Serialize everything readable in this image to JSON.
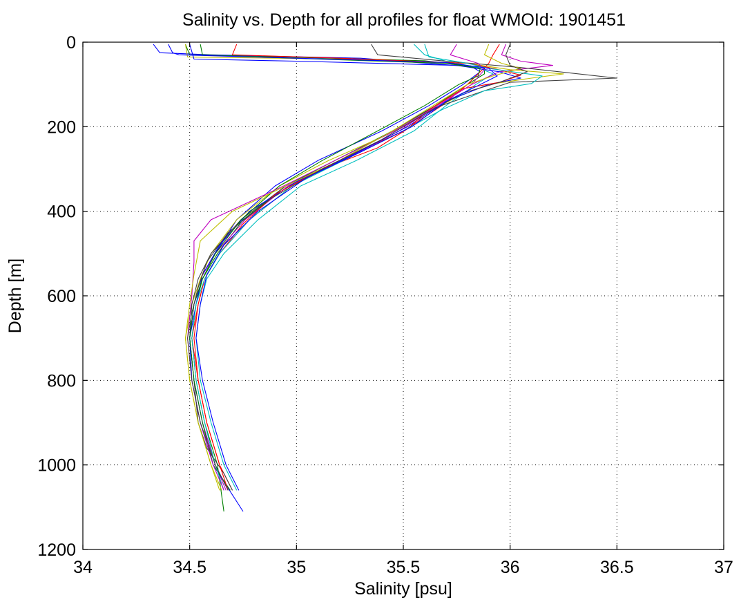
{
  "chart_data": {
    "type": "line",
    "title": "Salinity vs. Depth for all profiles for float WMOId: 1901451",
    "xlabel": "Salinity [psu]",
    "ylabel": "Depth [m]",
    "xlim": [
      34,
      37
    ],
    "ylim": [
      0,
      1200
    ],
    "y_inverted": true,
    "grid": true,
    "legend": "none",
    "x_ticks": [
      "34",
      "34.5",
      "35",
      "35.5",
      "36",
      "36.5",
      "37"
    ],
    "y_ticks": [
      "0",
      "200",
      "400",
      "600",
      "800",
      "1000",
      "1200"
    ],
    "colors": [
      "#0000ff",
      "#008000",
      "#ff0000",
      "#00bfbf",
      "#bf00bf",
      "#bfbf00",
      "#404040"
    ],
    "series": [
      {
        "points": [
          [
            34.33,
            5
          ],
          [
            34.36,
            25
          ],
          [
            34.6,
            30
          ],
          [
            35.3,
            38
          ],
          [
            35.82,
            58
          ],
          [
            35.86,
            70
          ],
          [
            35.78,
            100
          ],
          [
            35.62,
            150
          ],
          [
            35.4,
            210
          ],
          [
            35.1,
            280
          ],
          [
            34.9,
            340
          ],
          [
            34.72,
            420
          ],
          [
            34.62,
            500
          ],
          [
            34.56,
            560
          ],
          [
            34.52,
            620
          ],
          [
            34.5,
            700
          ],
          [
            34.52,
            800
          ],
          [
            34.56,
            900
          ],
          [
            34.62,
            1000
          ],
          [
            34.68,
            1060
          ]
        ]
      },
      {
        "points": [
          [
            34.48,
            5
          ],
          [
            34.5,
            30
          ],
          [
            35.0,
            36
          ],
          [
            35.6,
            44
          ],
          [
            35.88,
            60
          ],
          [
            35.88,
            75
          ],
          [
            35.8,
            100
          ],
          [
            35.65,
            150
          ],
          [
            35.45,
            210
          ],
          [
            35.18,
            280
          ],
          [
            34.95,
            340
          ],
          [
            34.75,
            420
          ],
          [
            34.63,
            500
          ],
          [
            34.56,
            560
          ],
          [
            34.53,
            620
          ],
          [
            34.51,
            700
          ],
          [
            34.53,
            800
          ],
          [
            34.57,
            900
          ],
          [
            34.63,
            1000
          ],
          [
            34.66,
            1110
          ]
        ]
      },
      {
        "points": [
          [
            35.95,
            5
          ],
          [
            35.92,
            30
          ],
          [
            35.9,
            50
          ],
          [
            35.88,
            60
          ],
          [
            35.8,
            100
          ],
          [
            35.68,
            150
          ],
          [
            35.5,
            210
          ],
          [
            35.2,
            280
          ],
          [
            34.98,
            340
          ],
          [
            34.78,
            420
          ],
          [
            34.64,
            500
          ],
          [
            34.57,
            560
          ],
          [
            34.54,
            620
          ],
          [
            34.51,
            700
          ],
          [
            34.54,
            800
          ],
          [
            34.58,
            900
          ],
          [
            34.64,
            1000
          ],
          [
            34.7,
            1060
          ]
        ]
      },
      {
        "points": [
          [
            35.55,
            5
          ],
          [
            35.6,
            30
          ],
          [
            35.7,
            45
          ],
          [
            35.85,
            60
          ],
          [
            35.92,
            75
          ],
          [
            35.84,
            100
          ],
          [
            35.7,
            150
          ],
          [
            35.55,
            210
          ],
          [
            35.28,
            280
          ],
          [
            35.02,
            340
          ],
          [
            34.82,
            420
          ],
          [
            34.66,
            500
          ],
          [
            34.58,
            560
          ],
          [
            34.55,
            620
          ],
          [
            34.53,
            700
          ],
          [
            34.55,
            800
          ],
          [
            34.6,
            900
          ],
          [
            34.66,
            1000
          ],
          [
            34.72,
            1060
          ]
        ]
      },
      {
        "points": [
          [
            35.98,
            5
          ],
          [
            35.96,
            30
          ],
          [
            36.05,
            45
          ],
          [
            36.2,
            55
          ],
          [
            35.95,
            70
          ],
          [
            35.82,
            100
          ],
          [
            35.66,
            150
          ],
          [
            35.48,
            210
          ],
          [
            35.22,
            280
          ],
          [
            34.96,
            340
          ],
          [
            34.76,
            420
          ],
          [
            34.62,
            500
          ],
          [
            34.55,
            560
          ],
          [
            34.52,
            620
          ],
          [
            34.5,
            700
          ],
          [
            34.52,
            800
          ],
          [
            34.56,
            900
          ],
          [
            34.62,
            1000
          ],
          [
            34.67,
            1060
          ]
        ]
      },
      {
        "points": [
          [
            34.48,
            5
          ],
          [
            34.49,
            35
          ],
          [
            35.2,
            40
          ],
          [
            35.8,
            50
          ],
          [
            36.0,
            65
          ],
          [
            36.25,
            75
          ],
          [
            36.1,
            85
          ],
          [
            35.9,
            100
          ],
          [
            35.75,
            130
          ],
          [
            35.6,
            170
          ],
          [
            35.42,
            220
          ],
          [
            35.15,
            280
          ],
          [
            34.92,
            340
          ],
          [
            34.72,
            420
          ],
          [
            34.6,
            500
          ],
          [
            34.55,
            560
          ],
          [
            34.51,
            620
          ],
          [
            34.48,
            700
          ],
          [
            34.5,
            800
          ],
          [
            34.54,
            900
          ],
          [
            34.6,
            1000
          ],
          [
            34.65,
            1060
          ]
        ]
      },
      {
        "points": [
          [
            35.35,
            5
          ],
          [
            35.38,
            30
          ],
          [
            35.7,
            45
          ],
          [
            36.05,
            60
          ],
          [
            36.5,
            85
          ],
          [
            36.0,
            95
          ],
          [
            35.85,
            120
          ],
          [
            35.62,
            160
          ],
          [
            35.45,
            210
          ],
          [
            35.2,
            280
          ],
          [
            34.95,
            340
          ],
          [
            34.74,
            420
          ],
          [
            34.6,
            500
          ],
          [
            34.54,
            560
          ],
          [
            34.51,
            620
          ],
          [
            34.5,
            700
          ],
          [
            34.52,
            800
          ],
          [
            34.54,
            900
          ],
          [
            34.58,
            960
          ],
          [
            34.66,
            1020
          ],
          [
            34.7,
            1060
          ]
        ]
      },
      {
        "points": [
          [
            34.5,
            5
          ],
          [
            34.52,
            40
          ],
          [
            35.0,
            45
          ],
          [
            35.75,
            55
          ],
          [
            35.95,
            70
          ],
          [
            36.05,
            85
          ],
          [
            35.9,
            100
          ],
          [
            35.7,
            140
          ],
          [
            35.52,
            200
          ],
          [
            35.25,
            270
          ],
          [
            35.0,
            330
          ],
          [
            34.78,
            400
          ],
          [
            34.64,
            480
          ],
          [
            34.56,
            550
          ],
          [
            34.53,
            620
          ],
          [
            34.5,
            700
          ],
          [
            34.51,
            800
          ],
          [
            34.55,
            900
          ],
          [
            34.61,
            1000
          ],
          [
            34.75,
            1110
          ]
        ]
      },
      {
        "points": [
          [
            34.55,
            5
          ],
          [
            34.56,
            30
          ],
          [
            35.1,
            40
          ],
          [
            35.7,
            50
          ],
          [
            35.86,
            62
          ],
          [
            35.85,
            80
          ],
          [
            35.76,
            100
          ],
          [
            35.6,
            150
          ],
          [
            35.38,
            210
          ],
          [
            35.12,
            280
          ],
          [
            34.92,
            340
          ],
          [
            34.74,
            420
          ],
          [
            34.62,
            500
          ],
          [
            34.56,
            560
          ],
          [
            34.52,
            620
          ],
          [
            34.5,
            700
          ],
          [
            34.52,
            800
          ],
          [
            34.56,
            900
          ],
          [
            34.61,
            1000
          ],
          [
            34.69,
            1060
          ]
        ]
      },
      {
        "points": [
          [
            34.72,
            5
          ],
          [
            34.7,
            30
          ],
          [
            35.2,
            38
          ],
          [
            35.8,
            50
          ],
          [
            35.92,
            62
          ],
          [
            36.05,
            78
          ],
          [
            35.95,
            95
          ],
          [
            35.78,
            110
          ],
          [
            35.62,
            160
          ],
          [
            35.52,
            205
          ],
          [
            35.38,
            250
          ],
          [
            35.12,
            300
          ],
          [
            34.9,
            360
          ],
          [
            34.75,
            430
          ],
          [
            34.64,
            500
          ],
          [
            34.57,
            560
          ],
          [
            34.54,
            620
          ],
          [
            34.52,
            700
          ],
          [
            34.54,
            800
          ],
          [
            34.58,
            900
          ],
          [
            34.64,
            1000
          ],
          [
            34.68,
            1060
          ]
        ]
      },
      {
        "points": [
          [
            35.6,
            5
          ],
          [
            35.62,
            35
          ],
          [
            35.8,
            50
          ],
          [
            35.9,
            62
          ],
          [
            36.15,
            80
          ],
          [
            36.1,
            98
          ],
          [
            35.88,
            115
          ],
          [
            35.68,
            160
          ],
          [
            35.48,
            215
          ],
          [
            35.22,
            280
          ],
          [
            34.98,
            340
          ],
          [
            34.78,
            420
          ],
          [
            34.64,
            500
          ],
          [
            34.57,
            560
          ],
          [
            34.53,
            620
          ],
          [
            34.51,
            700
          ],
          [
            34.53,
            800
          ],
          [
            34.57,
            900
          ],
          [
            34.62,
            1000
          ],
          [
            34.66,
            1060
          ]
        ]
      },
      {
        "points": [
          [
            35.75,
            5
          ],
          [
            35.72,
            30
          ],
          [
            35.85,
            50
          ],
          [
            35.88,
            65
          ],
          [
            35.82,
            100
          ],
          [
            35.66,
            150
          ],
          [
            35.46,
            210
          ],
          [
            35.18,
            280
          ],
          [
            34.94,
            340
          ],
          [
            34.6,
            420
          ],
          [
            34.52,
            470
          ],
          [
            34.52,
            520
          ],
          [
            34.51,
            600
          ],
          [
            34.49,
            700
          ],
          [
            34.51,
            800
          ],
          [
            34.55,
            900
          ],
          [
            34.61,
            1000
          ],
          [
            34.66,
            1060
          ]
        ]
      },
      {
        "points": [
          [
            35.9,
            5
          ],
          [
            35.88,
            30
          ],
          [
            35.96,
            50
          ],
          [
            36.05,
            62
          ],
          [
            35.92,
            80
          ],
          [
            35.8,
            100
          ],
          [
            35.64,
            150
          ],
          [
            35.45,
            210
          ],
          [
            35.2,
            280
          ],
          [
            34.95,
            340
          ],
          [
            34.7,
            400
          ],
          [
            34.55,
            470
          ],
          [
            34.52,
            550
          ],
          [
            34.5,
            620
          ],
          [
            34.48,
            700
          ],
          [
            34.5,
            800
          ],
          [
            34.54,
            900
          ],
          [
            34.6,
            1000
          ],
          [
            34.64,
            1060
          ]
        ]
      },
      {
        "points": [
          [
            36.0,
            5
          ],
          [
            35.98,
            30
          ],
          [
            36.0,
            55
          ],
          [
            36.08,
            70
          ],
          [
            35.95,
            95
          ],
          [
            35.78,
            120
          ],
          [
            35.6,
            170
          ],
          [
            35.4,
            230
          ],
          [
            35.12,
            300
          ],
          [
            34.88,
            370
          ],
          [
            34.68,
            450
          ],
          [
            34.58,
            520
          ],
          [
            34.54,
            580
          ],
          [
            34.51,
            640
          ],
          [
            34.49,
            700
          ],
          [
            34.51,
            800
          ],
          [
            34.55,
            900
          ],
          [
            34.62,
            1000
          ],
          [
            34.68,
            1060
          ]
        ]
      },
      {
        "points": [
          [
            34.4,
            5
          ],
          [
            34.42,
            25
          ],
          [
            34.45,
            30
          ],
          [
            35.0,
            38
          ],
          [
            35.7,
            48
          ],
          [
            35.9,
            62
          ],
          [
            35.94,
            80
          ],
          [
            35.86,
            100
          ],
          [
            35.7,
            140
          ],
          [
            35.54,
            200
          ],
          [
            35.3,
            260
          ],
          [
            35.05,
            320
          ],
          [
            34.82,
            400
          ],
          [
            34.66,
            480
          ],
          [
            34.58,
            550
          ],
          [
            34.55,
            620
          ],
          [
            34.53,
            700
          ],
          [
            34.56,
            800
          ],
          [
            34.61,
            900
          ],
          [
            34.67,
            1000
          ],
          [
            34.73,
            1060
          ]
        ]
      }
    ]
  }
}
